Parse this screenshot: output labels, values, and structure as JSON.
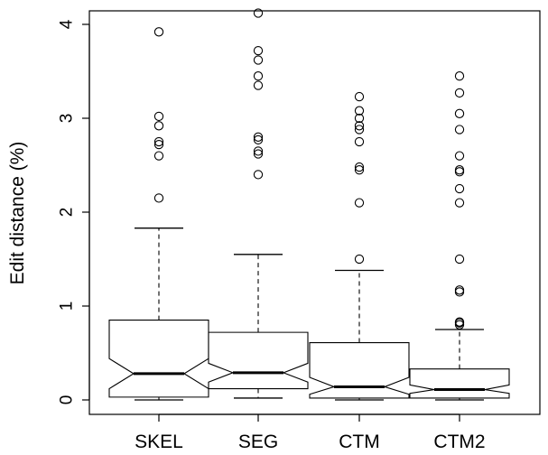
{
  "chart_data": {
    "type": "boxplot",
    "notched": true,
    "ylabel": "Edit distance (%)",
    "ylim": [
      0,
      4
    ],
    "yticks": [
      "0",
      "1",
      "2",
      "3",
      "4"
    ],
    "categories": [
      "SKEL",
      "SEG",
      "CTM",
      "CTM2"
    ],
    "boxes": [
      {
        "name": "SKEL",
        "whisker_low": 0.0,
        "q1": 0.03,
        "median": 0.28,
        "q3": 0.85,
        "whisker_high": 1.83,
        "notch_low": 0.12,
        "notch_high": 0.44,
        "outliers": [
          2.15,
          2.6,
          2.72,
          2.75,
          2.92,
          3.02,
          3.92
        ]
      },
      {
        "name": "SEG",
        "whisker_low": 0.02,
        "q1": 0.12,
        "median": 0.29,
        "q3": 0.72,
        "whisker_high": 1.55,
        "notch_low": 0.19,
        "notch_high": 0.39,
        "outliers": [
          2.4,
          2.62,
          2.65,
          2.77,
          2.8,
          3.35,
          3.45,
          3.62,
          3.72,
          4.12
        ]
      },
      {
        "name": "CTM",
        "whisker_low": 0.0,
        "q1": 0.02,
        "median": 0.14,
        "q3": 0.61,
        "whisker_high": 1.38,
        "notch_low": 0.06,
        "notch_high": 0.24,
        "outliers": [
          1.5,
          2.1,
          2.45,
          2.48,
          2.75,
          2.88,
          2.92,
          3.0,
          3.08,
          3.23
        ]
      },
      {
        "name": "CTM2",
        "whisker_low": 0.0,
        "q1": 0.02,
        "median": 0.11,
        "q3": 0.33,
        "whisker_high": 0.75,
        "notch_low": 0.07,
        "notch_high": 0.16,
        "outliers": [
          0.8,
          0.82,
          0.83,
          1.15,
          1.17,
          1.5,
          2.1,
          2.25,
          2.43,
          2.45,
          2.6,
          2.88,
          3.05,
          3.27,
          3.45
        ]
      }
    ]
  }
}
